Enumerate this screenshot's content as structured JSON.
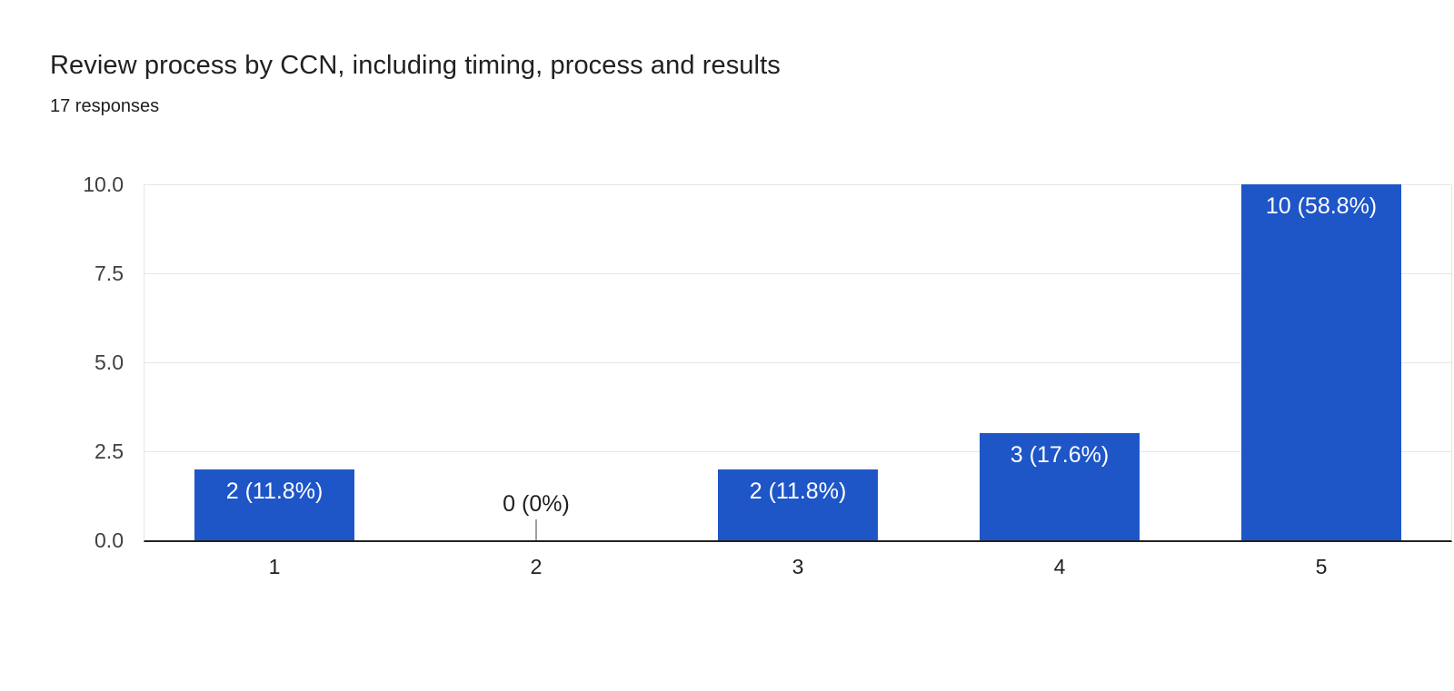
{
  "header": {
    "title": "Review process by CCN, including timing, process and results",
    "subtitle": "17 responses"
  },
  "chart_data": {
    "type": "bar",
    "title": "Review process by CCN, including timing, process and results",
    "subtitle": "17 responses",
    "total_responses": 17,
    "categories": [
      "1",
      "2",
      "3",
      "4",
      "5"
    ],
    "values": [
      2,
      0,
      2,
      3,
      10
    ],
    "percentages": [
      11.8,
      0,
      11.8,
      17.6,
      58.8
    ],
    "bar_labels": [
      "2 (11.8%)",
      "0 (0%)",
      "2 (11.8%)",
      "3 (17.6%)",
      "10 (58.8%)"
    ],
    "xlabel": "",
    "ylabel": "",
    "ylim": [
      0,
      10
    ],
    "yticks": [
      0,
      2.5,
      5,
      7.5,
      10
    ],
    "ytick_labels": [
      "0.0",
      "2.5",
      "5.0",
      "7.5",
      "10.0"
    ],
    "grid": true,
    "legend": "none",
    "colors": {
      "bar": "#1E56C8",
      "grid": "#e6e6e6",
      "axis_line": "#222222",
      "bar_label": "#ffffff",
      "zero_label": "#1f1f1f",
      "zero_stem": "#9e9e9e",
      "tick_label": "#404040",
      "background": "#ffffff"
    }
  }
}
